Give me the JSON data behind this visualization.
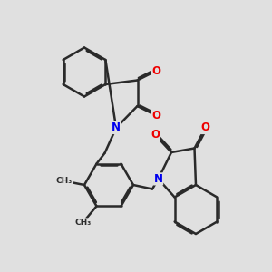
{
  "background_color": "#e0e0e0",
  "bond_color": "#2a2a2a",
  "nitrogen_color": "#0000ee",
  "oxygen_color": "#ee0000",
  "bond_width": 1.8,
  "dbo": 0.055,
  "figsize": [
    3.0,
    3.0
  ],
  "dpi": 100,
  "xlim": [
    0,
    10
  ],
  "ylim": [
    0,
    10
  ]
}
